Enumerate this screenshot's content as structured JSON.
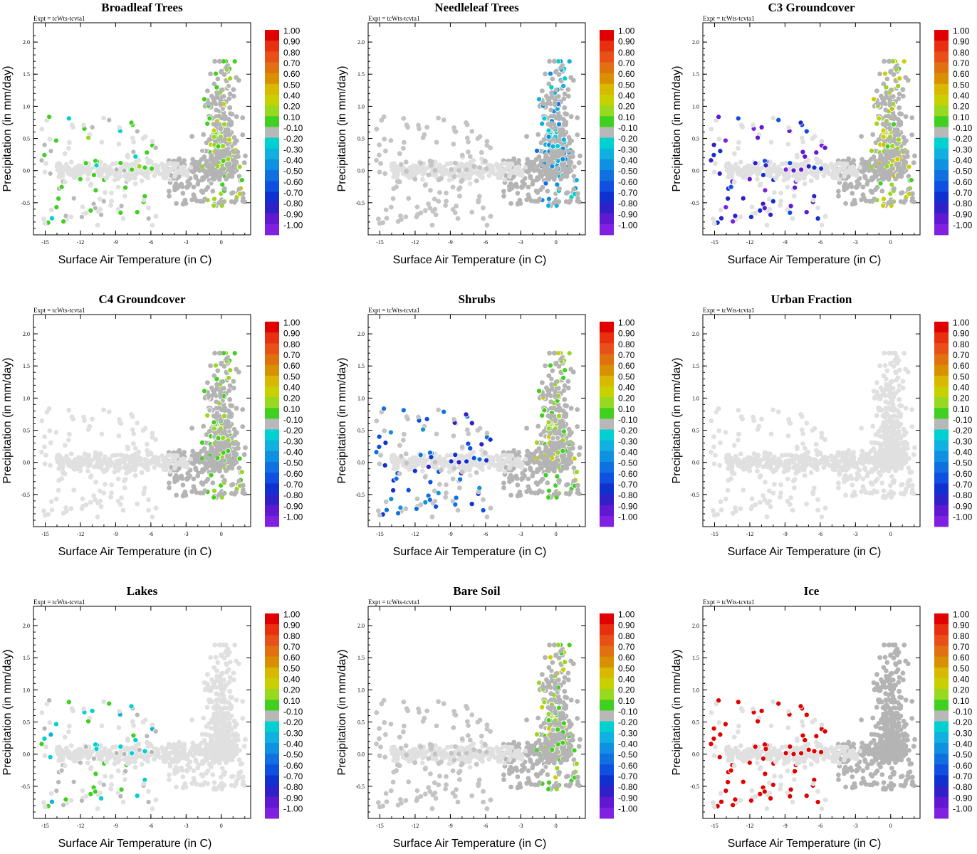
{
  "chart_data": {
    "type": "scatter",
    "expt_label": "Expt = tcWts-tcvta1",
    "xlabel": "Surface Air Temperature (in C)",
    "ylabel": "Precipitation (in mm/day)",
    "xlim": [
      -16,
      2.5
    ],
    "ylim": [
      -1.0,
      2.3
    ],
    "xticks": [
      -15,
      -12,
      -9,
      -6,
      -3,
      0
    ],
    "yticks": [
      "-0.5",
      "0.0",
      "0.5",
      "1.0",
      "1.5",
      "2.0"
    ],
    "colorbar_labels": [
      "1.00",
      "0.90",
      "0.80",
      "0.70",
      "0.60",
      "0.50",
      "0.40",
      "0.20",
      "0.10",
      "-0.10",
      "-0.20",
      "-0.30",
      "-0.40",
      "-0.50",
      "-0.60",
      "-0.70",
      "-0.80",
      "-0.90",
      "-1.00"
    ],
    "colorbar_colors": [
      "#e00000",
      "#e83010",
      "#e85018",
      "#e07010",
      "#d89000",
      "#d8b800",
      "#c8d000",
      "#98d820",
      "#40d020",
      "#b8b8b8",
      "#00d0d0",
      "#10b0e0",
      "#1090e0",
      "#1070e0",
      "#1050e0",
      "#1030d0",
      "#3020c8",
      "#6018d0",
      "#8020e0"
    ],
    "panels": [
      {
        "title": "Broadleaf Trees",
        "highlights": [
          {
            "region": "cold-cluster",
            "value": 0.0
          },
          {
            "region": "warm-cluster",
            "value": 0.15
          }
        ]
      },
      {
        "title": "Needleleaf Trees",
        "highlights": [
          {
            "region": "warm-cluster",
            "value": -0.3
          }
        ]
      },
      {
        "title": "C3 Groundcover",
        "highlights": [
          {
            "region": "cold-cluster",
            "value": -0.8
          },
          {
            "region": "warm-cluster",
            "value": 0.3
          }
        ]
      },
      {
        "title": "C4 Groundcover",
        "highlights": [
          {
            "region": "warm-cluster",
            "value": 0.1
          }
        ]
      },
      {
        "title": "Shrubs",
        "highlights": [
          {
            "region": "cold-cluster",
            "value": -0.6
          },
          {
            "region": "warm-cluster",
            "value": 0.15
          }
        ]
      },
      {
        "title": "Urban Fraction",
        "highlights": []
      },
      {
        "title": "Lakes",
        "highlights": [
          {
            "region": "cold-cluster",
            "value": -0.1
          }
        ]
      },
      {
        "title": "Bare Soil",
        "highlights": [
          {
            "region": "warm-cluster",
            "value": 0.15
          }
        ]
      },
      {
        "title": "Ice",
        "highlights": [
          {
            "region": "cold-cluster",
            "value": 1.0
          }
        ]
      }
    ]
  }
}
